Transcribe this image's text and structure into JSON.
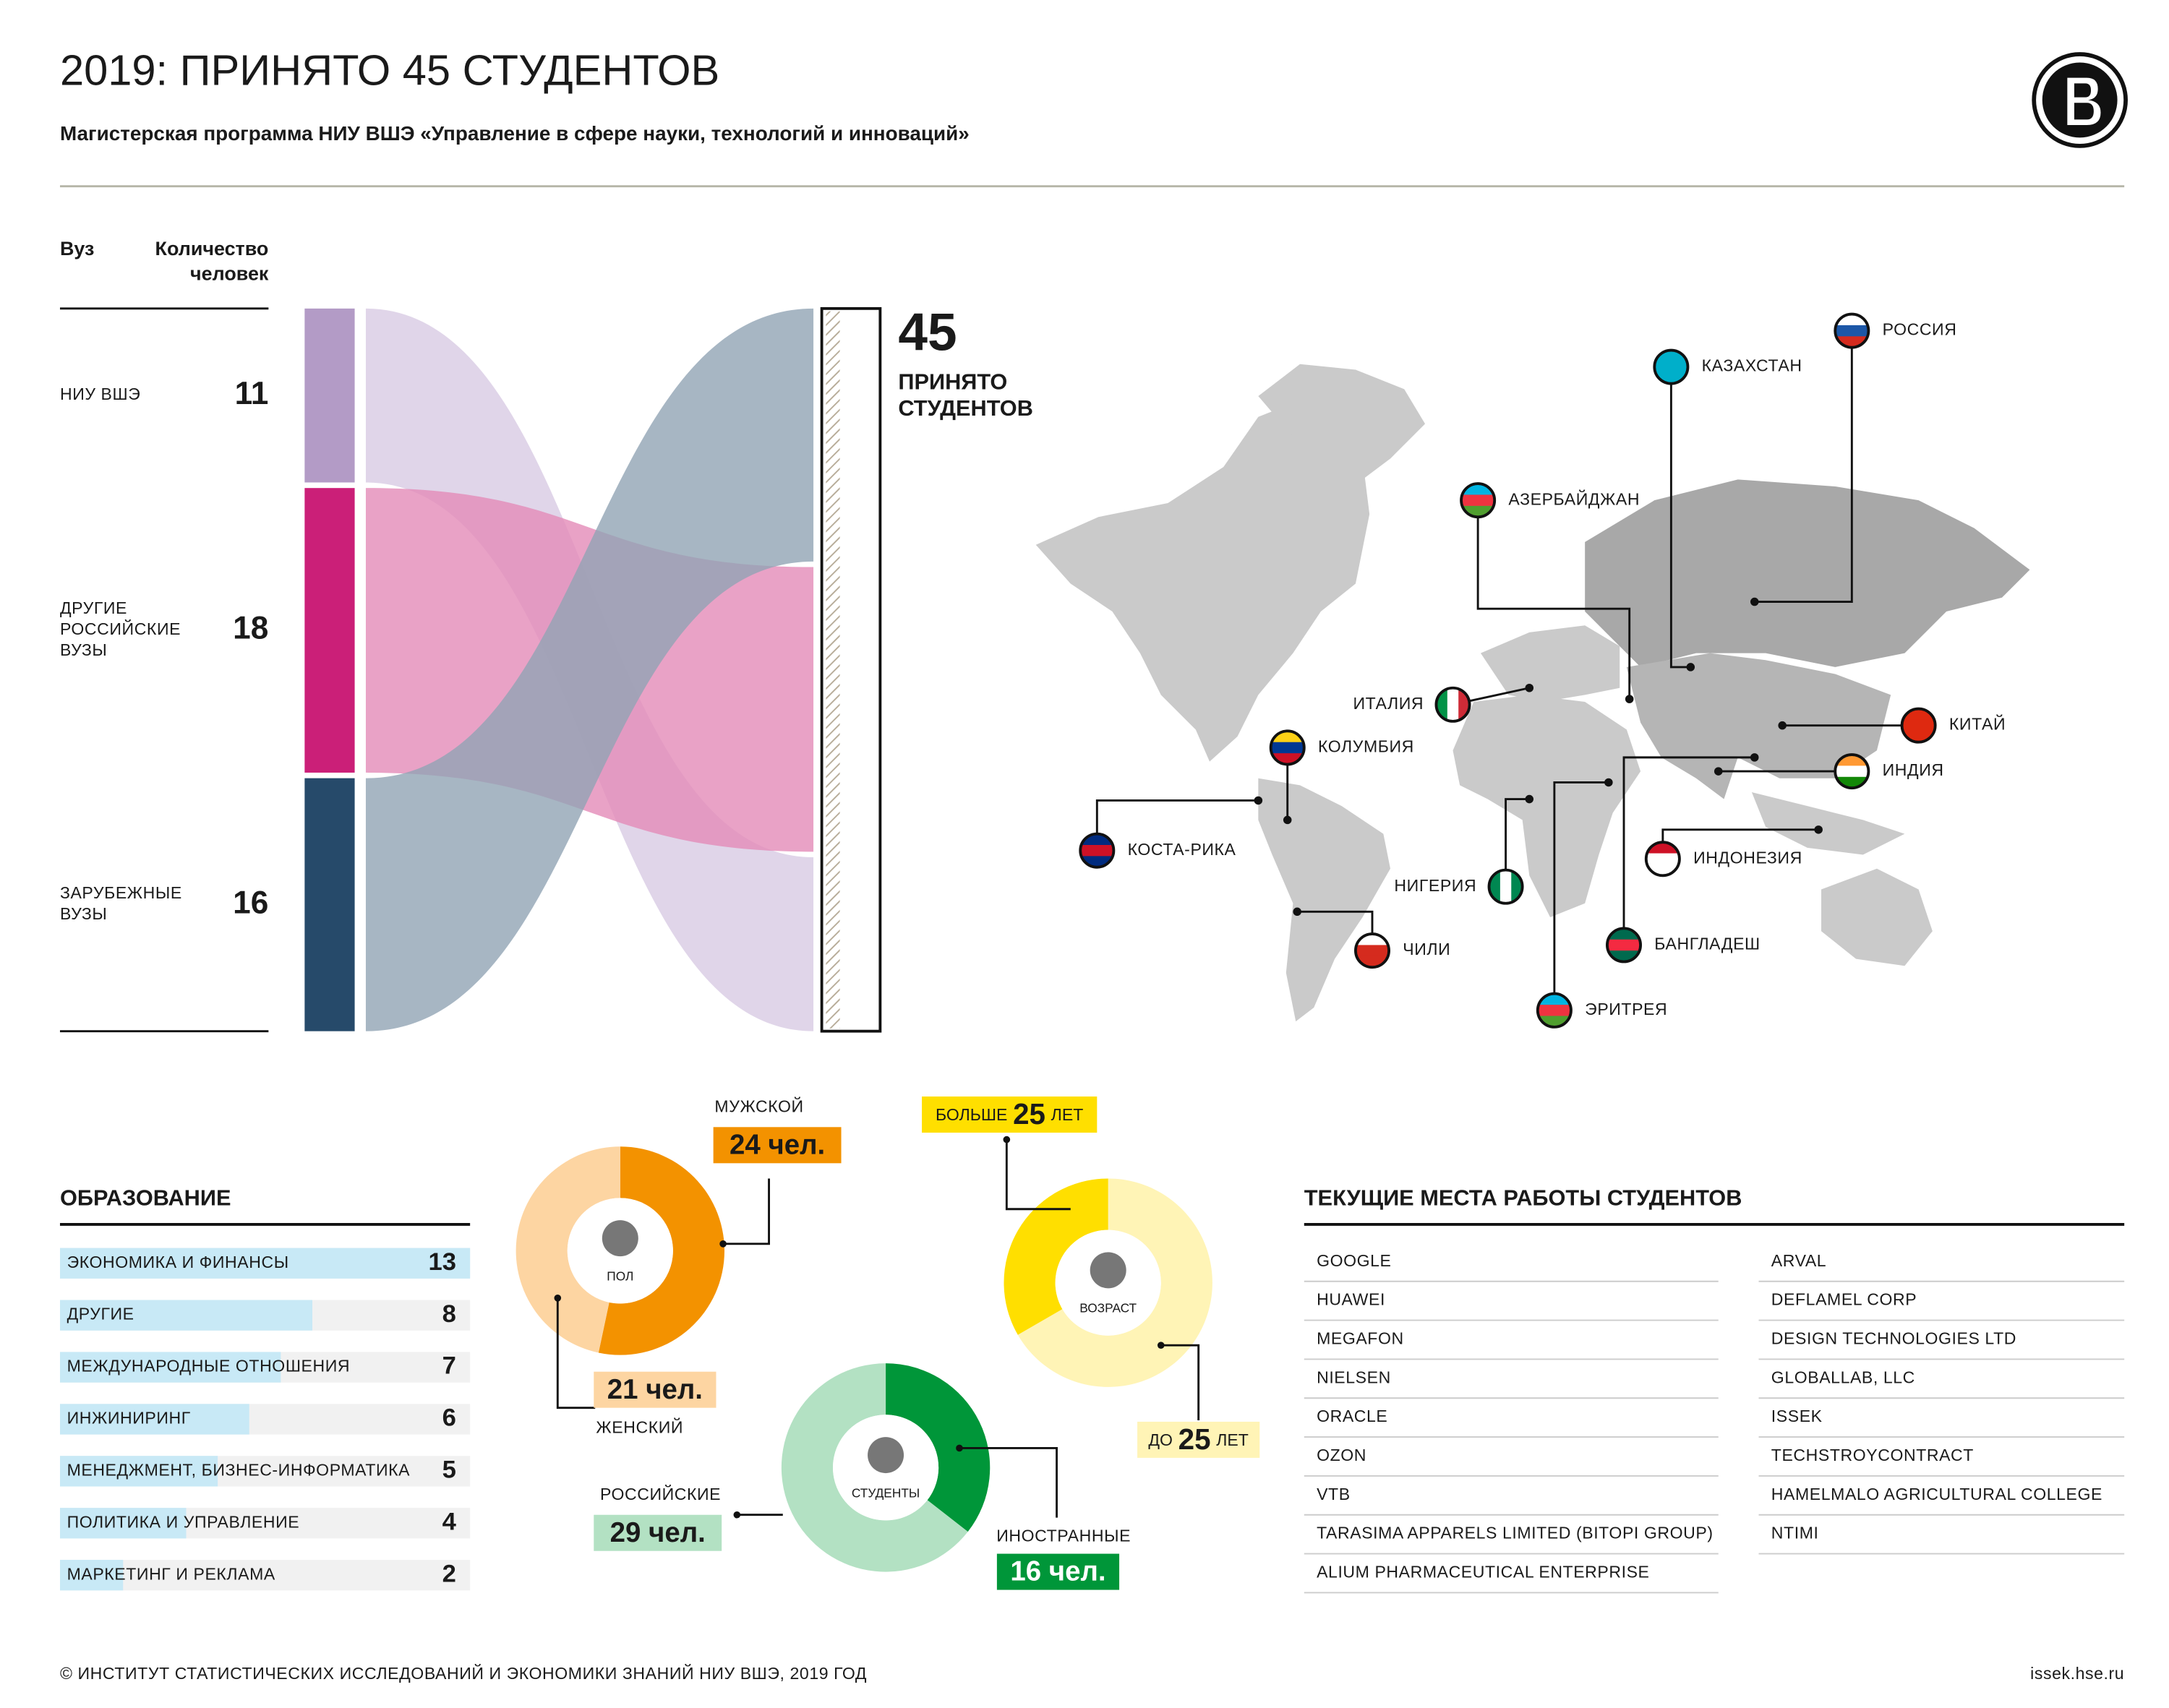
{
  "header": {
    "title": "2019: ПРИНЯТО 45 СТУДЕНТОВ",
    "subtitle": "Магистерская программа НИУ ВШЭ «Управление в сфере науки, технологий и инноваций»"
  },
  "chart_data": [
    {
      "type": "flow",
      "column_labels": {
        "university": "Вуз",
        "count": [
          "Количество",
          "человек"
        ]
      },
      "categories": [
        [
          "НИУ ВШЭ"
        ],
        [
          "ДРУГИЕ",
          "РОССИЙСКИЕ",
          "ВУЗЫ"
        ],
        [
          "ЗАРУБЕЖНЫЕ",
          "ВУЗЫ"
        ]
      ],
      "values": [
        11,
        18,
        16
      ],
      "colors": [
        "#b39bc6",
        "#cb1f78",
        "#264a6a"
      ],
      "flow_colors": [
        "#d8cbe4",
        "#e38bb8",
        "#91a4b4"
      ],
      "total": 45,
      "total_label": [
        "ПРИНЯТО",
        "СТУДЕНТОВ"
      ]
    },
    {
      "type": "hbar",
      "title": "ОБРАЗОВАНИЕ",
      "categories": [
        "ЭКОНОМИКА И ФИНАНСЫ",
        "ДРУГИЕ",
        "МЕЖДУНАРОДНЫЕ ОТНОШЕНИЯ",
        "ИНЖИНИРИНГ",
        "МЕНЕДЖМЕНТ, БИЗНЕС-ИНФОРМАТИКА",
        "ПОЛИТИКА И УПРАВЛЕНИЕ",
        "МАРКЕТИНГ И РЕКЛАМА"
      ],
      "values": [
        13,
        8,
        7,
        6,
        5,
        4,
        2
      ],
      "xlim": [
        0,
        13
      ],
      "color": "#c8e9f6",
      "track_color": "#f1f1f1"
    },
    {
      "type": "donut",
      "center_label": "ПОЛ",
      "categories": [
        "МУЖСКОЙ",
        "ЖЕНСКИЙ"
      ],
      "values": [
        24,
        21
      ],
      "value_labels": [
        "24 чел.",
        "21 чел."
      ],
      "colors": [
        "#f39200",
        "#fdd5a2"
      ]
    },
    {
      "type": "donut",
      "center_label": "ВОЗРАСТ",
      "categories": [
        [
          "БОЛЬШЕ",
          "25",
          "ЛЕТ"
        ],
        [
          "ДО",
          "25",
          "ЛЕТ"
        ]
      ],
      "values": [
        15,
        30
      ],
      "colors": [
        "#ffdf00",
        "#fff4b6"
      ]
    },
    {
      "type": "donut",
      "center_label": "СТУДЕНТЫ",
      "categories": [
        "РОССИЙСКИЕ",
        "ИНОСТРАННЫЕ"
      ],
      "values": [
        29,
        16
      ],
      "value_labels": [
        "29 чел.",
        "16 чел."
      ],
      "colors": [
        "#b3e1c3",
        "#009639"
      ]
    }
  ],
  "map": {
    "countries": [
      "РОССИЯ",
      "КАЗАХСТАН",
      "АЗЕРБАЙДЖАН",
      "ИТАЛИЯ",
      "КОЛУМБИЯ",
      "КОСТА-РИКА",
      "НИГЕРИЯ",
      "ЧИЛИ",
      "ИНДОНЕЗИЯ",
      "БАНГЛАДЕШ",
      "ЭРИТРЕЯ",
      "КИТАЙ",
      "ИНДИЯ"
    ]
  },
  "employers": {
    "title": "ТЕКУЩИЕ МЕСТА РАБОТЫ СТУДЕНТОВ",
    "left": [
      "GOOGLE",
      "HUAWEI",
      "MEGAFON",
      "NIELSEN",
      "ORACLE",
      "OZON",
      "VTB",
      "TARASIMA APPARELS LIMITED (BITOPI GROUP)",
      "ALIUM PHARMACEUTICAL ENTERPRISE"
    ],
    "right": [
      "ARVAL",
      "DEFLAMEL CORP",
      "DESIGN TECHNOLOGIES LTD",
      "GLOBALLAB, LLC",
      "ISSEK",
      "TECHSTROYCONTRACT",
      "HAMELMALO AGRICULTURAL COLLEGE",
      "NTIMI"
    ]
  },
  "footer": {
    "copyright": "© ИНСТИТУТ СТАТИСТИЧЕСКИХ ИССЛЕДОВАНИЙ И ЭКОНОМИКИ ЗНАНИЙ НИУ ВШЭ, 2019 ГОД",
    "url": "issek.hse.ru"
  }
}
